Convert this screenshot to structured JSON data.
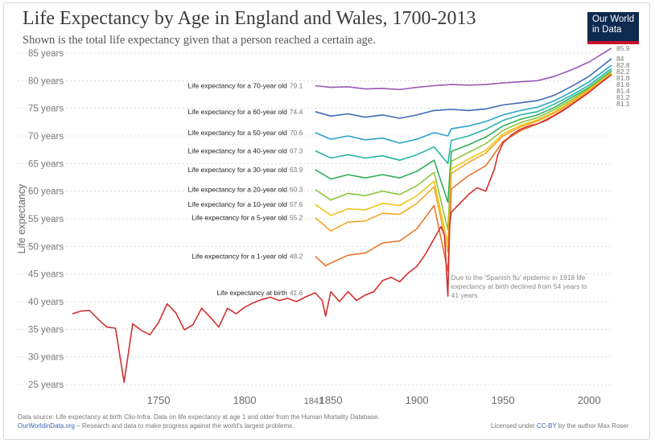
{
  "header": {
    "title": "Life Expectancy by Age in England and Wales, 1700-2013",
    "subtitle": "Shown is the total life expectancy given that a person reached a certain age."
  },
  "logo": {
    "line1": "Our World",
    "line2": "in Data",
    "bg_color": "#0f2a4f",
    "accent_color": "#c8102e"
  },
  "footer": {
    "source": "Data source: Life expectancy at birth Clio-Infra. Data on life expectancy at age 1 and older from the Human Mortality Database.",
    "link": "OurWorldinData.org",
    "tagline": " – Research and data to make progress against the world's largest problems.",
    "license_prefix": "Licensed under ",
    "license_link": "CC-BY",
    "license_suffix": " by the author Max Roser"
  },
  "chart_data": {
    "type": "line",
    "ylabel": "Life expectancy",
    "xlim": [
      1700,
      2013
    ],
    "ylim": [
      25,
      85
    ],
    "x_ticks": [
      1750,
      1800,
      1850,
      1900,
      1950,
      2000
    ],
    "x_tick_labels": [
      "1750",
      "1800",
      "1850",
      "1900",
      "1950",
      "2000"
    ],
    "start_marker_label": "1841",
    "y_ticks": [
      25,
      30,
      35,
      40,
      45,
      50,
      55,
      60,
      65,
      70,
      75,
      80,
      85
    ],
    "y_tick_labels": [
      "25 years",
      "30 years",
      "35 years",
      "40 years",
      "45 years",
      "50 years",
      "55 years",
      "60 years",
      "65 years",
      "70 years",
      "75 years",
      "80 years",
      "85 years"
    ],
    "grid": "horizontal dotted",
    "annotation": {
      "lines": [
        "Due to the 'Spanish flu' epidemic in 1918 life",
        "expectancy at birth declined from 54 years to",
        "41 years."
      ],
      "x": 1918,
      "y": 41
    },
    "series": [
      {
        "name": "Life expectancy for a 70-year old",
        "color": "#9b59b6",
        "start_value": "79.1",
        "end_value": "85.9",
        "points": [
          [
            1841,
            79.1
          ],
          [
            1850,
            78.8
          ],
          [
            1860,
            78.9
          ],
          [
            1870,
            78.5
          ],
          [
            1880,
            78.6
          ],
          [
            1890,
            78.4
          ],
          [
            1900,
            78.8
          ],
          [
            1910,
            79.1
          ],
          [
            1920,
            79.3
          ],
          [
            1930,
            79.2
          ],
          [
            1940,
            79.3
          ],
          [
            1950,
            79.6
          ],
          [
            1960,
            79.8
          ],
          [
            1970,
            80.0
          ],
          [
            1980,
            80.8
          ],
          [
            1990,
            82.0
          ],
          [
            2000,
            83.4
          ],
          [
            2013,
            85.9
          ]
        ]
      },
      {
        "name": "Life expectancy for a 60-year old",
        "color": "#3f6bb5",
        "start_value": "74.4",
        "end_value": "84",
        "points": [
          [
            1841,
            74.4
          ],
          [
            1850,
            73.6
          ],
          [
            1860,
            74.0
          ],
          [
            1870,
            73.4
          ],
          [
            1880,
            73.8
          ],
          [
            1890,
            73.2
          ],
          [
            1900,
            73.8
          ],
          [
            1910,
            74.6
          ],
          [
            1920,
            74.8
          ],
          [
            1930,
            74.6
          ],
          [
            1940,
            74.9
          ],
          [
            1950,
            75.6
          ],
          [
            1960,
            76.0
          ],
          [
            1970,
            76.4
          ],
          [
            1980,
            77.4
          ],
          [
            1990,
            79.0
          ],
          [
            2000,
            80.8
          ],
          [
            2013,
            84.0
          ]
        ]
      },
      {
        "name": "Life expectancy for a 50-year old",
        "color": "#2aa3c9",
        "start_value": "70.6",
        "end_value": "82.8",
        "points": [
          [
            1841,
            70.6
          ],
          [
            1850,
            69.4
          ],
          [
            1860,
            70.0
          ],
          [
            1870,
            69.3
          ],
          [
            1880,
            69.6
          ],
          [
            1890,
            68.7
          ],
          [
            1900,
            69.4
          ],
          [
            1910,
            70.6
          ],
          [
            1918,
            70.0
          ],
          [
            1920,
            71.3
          ],
          [
            1930,
            71.8
          ],
          [
            1940,
            72.6
          ],
          [
            1950,
            73.8
          ],
          [
            1960,
            74.6
          ],
          [
            1970,
            75.2
          ],
          [
            1980,
            76.4
          ],
          [
            1990,
            78.0
          ],
          [
            2000,
            79.8
          ],
          [
            2013,
            82.8
          ]
        ]
      },
      {
        "name": "Life expectancy for a 40-year old",
        "color": "#26b5a4",
        "start_value": "67.3",
        "end_value": "82.2",
        "points": [
          [
            1841,
            67.3
          ],
          [
            1850,
            66.0
          ],
          [
            1860,
            66.6
          ],
          [
            1870,
            66.0
          ],
          [
            1880,
            66.4
          ],
          [
            1890,
            65.6
          ],
          [
            1900,
            66.6
          ],
          [
            1910,
            68.0
          ],
          [
            1918,
            65.0
          ],
          [
            1920,
            69.2
          ],
          [
            1930,
            70.0
          ],
          [
            1940,
            71.2
          ],
          [
            1950,
            72.8
          ],
          [
            1960,
            73.8
          ],
          [
            1970,
            74.4
          ],
          [
            1980,
            75.8
          ],
          [
            1990,
            77.4
          ],
          [
            2000,
            79.2
          ],
          [
            2013,
            82.2
          ]
        ]
      },
      {
        "name": "Life expectancy for a 30-year old",
        "color": "#2fae5a",
        "start_value": "63.9",
        "end_value": "81.8",
        "points": [
          [
            1841,
            63.9
          ],
          [
            1850,
            62.2
          ],
          [
            1860,
            63.0
          ],
          [
            1870,
            62.4
          ],
          [
            1880,
            63.0
          ],
          [
            1890,
            62.4
          ],
          [
            1900,
            63.6
          ],
          [
            1910,
            65.6
          ],
          [
            1918,
            58.0
          ],
          [
            1920,
            67.2
          ],
          [
            1930,
            68.4
          ],
          [
            1940,
            69.8
          ],
          [
            1950,
            71.8
          ],
          [
            1960,
            73.0
          ],
          [
            1970,
            73.8
          ],
          [
            1980,
            75.2
          ],
          [
            1990,
            77.0
          ],
          [
            2000,
            78.8
          ],
          [
            2013,
            81.8
          ]
        ]
      },
      {
        "name": "Life expectancy for a 20-year old",
        "color": "#8cc63f",
        "start_value": "60.3",
        "end_value": "81.6",
        "points": [
          [
            1841,
            60.3
          ],
          [
            1850,
            58.4
          ],
          [
            1860,
            59.6
          ],
          [
            1870,
            59.2
          ],
          [
            1880,
            60.0
          ],
          [
            1890,
            59.4
          ],
          [
            1900,
            61.0
          ],
          [
            1910,
            63.4
          ],
          [
            1918,
            53.0
          ],
          [
            1920,
            65.4
          ],
          [
            1930,
            67.0
          ],
          [
            1940,
            68.6
          ],
          [
            1950,
            71.0
          ],
          [
            1960,
            72.4
          ],
          [
            1970,
            73.3
          ],
          [
            1980,
            74.8
          ],
          [
            1990,
            76.6
          ],
          [
            2000,
            78.6
          ],
          [
            2013,
            81.6
          ]
        ]
      },
      {
        "name": "Life expectancy for a 10-year old",
        "color": "#f0c419",
        "start_value": "57.6",
        "end_value": "81.4",
        "points": [
          [
            1841,
            57.6
          ],
          [
            1850,
            55.6
          ],
          [
            1860,
            56.8
          ],
          [
            1870,
            56.6
          ],
          [
            1880,
            57.8
          ],
          [
            1890,
            57.4
          ],
          [
            1900,
            59.2
          ],
          [
            1910,
            61.8
          ],
          [
            1918,
            50.5
          ],
          [
            1920,
            64.0
          ],
          [
            1930,
            65.8
          ],
          [
            1940,
            67.4
          ],
          [
            1950,
            70.4
          ],
          [
            1960,
            71.9
          ],
          [
            1970,
            72.9
          ],
          [
            1980,
            74.4
          ],
          [
            1990,
            76.3
          ],
          [
            2000,
            78.4
          ],
          [
            2013,
            81.4
          ]
        ]
      },
      {
        "name": "Life expectancy for a 5-year old",
        "color": "#f5a623",
        "start_value": "55.2",
        "end_value": "81.2",
        "points": [
          [
            1841,
            55.2
          ],
          [
            1850,
            52.8
          ],
          [
            1860,
            54.4
          ],
          [
            1870,
            54.6
          ],
          [
            1880,
            56.0
          ],
          [
            1890,
            55.8
          ],
          [
            1900,
            57.8
          ],
          [
            1910,
            60.8
          ],
          [
            1918,
            49.0
          ],
          [
            1920,
            63.2
          ],
          [
            1930,
            65.2
          ],
          [
            1940,
            66.9
          ],
          [
            1950,
            70.0
          ],
          [
            1960,
            71.6
          ],
          [
            1970,
            72.7
          ],
          [
            1980,
            74.2
          ],
          [
            1990,
            76.1
          ],
          [
            2000,
            78.3
          ],
          [
            2013,
            81.2
          ]
        ]
      },
      {
        "name": "Life expectancy for a 1-year old",
        "color": "#e8772e",
        "start_value": "48.2",
        "end_value": "81.1",
        "points": [
          [
            1841,
            48.2
          ],
          [
            1847,
            46.5
          ],
          [
            1850,
            47.0
          ],
          [
            1860,
            48.4
          ],
          [
            1870,
            48.8
          ],
          [
            1880,
            50.6
          ],
          [
            1890,
            51.0
          ],
          [
            1900,
            53.2
          ],
          [
            1910,
            57.4
          ],
          [
            1918,
            45.5
          ],
          [
            1920,
            60.4
          ],
          [
            1930,
            62.8
          ],
          [
            1940,
            64.6
          ],
          [
            1950,
            69.0
          ],
          [
            1960,
            70.9
          ],
          [
            1970,
            72.2
          ],
          [
            1980,
            73.8
          ],
          [
            1990,
            75.8
          ],
          [
            2000,
            78.0
          ],
          [
            2013,
            81.1
          ]
        ]
      },
      {
        "name": "Life expectancy at birth",
        "color": "#d32f2f",
        "start_value": "41.6",
        "end_value": "",
        "points": [
          [
            1700,
            37.8
          ],
          [
            1705,
            38.3
          ],
          [
            1710,
            38.4
          ],
          [
            1715,
            36.8
          ],
          [
            1720,
            35.4
          ],
          [
            1725,
            35.2
          ],
          [
            1730,
            25.4
          ],
          [
            1735,
            36.0
          ],
          [
            1740,
            34.8
          ],
          [
            1745,
            34.0
          ],
          [
            1750,
            36.2
          ],
          [
            1755,
            39.6
          ],
          [
            1760,
            38.0
          ],
          [
            1765,
            34.9
          ],
          [
            1770,
            35.8
          ],
          [
            1775,
            38.8
          ],
          [
            1780,
            37.2
          ],
          [
            1785,
            35.4
          ],
          [
            1790,
            38.8
          ],
          [
            1795,
            37.8
          ],
          [
            1800,
            39.0
          ],
          [
            1805,
            39.8
          ],
          [
            1810,
            40.4
          ],
          [
            1815,
            40.8
          ],
          [
            1820,
            40.2
          ],
          [
            1825,
            40.6
          ],
          [
            1830,
            40.0
          ],
          [
            1835,
            40.8
          ],
          [
            1841,
            41.6
          ],
          [
            1845,
            40.2
          ],
          [
            1847,
            37.4
          ],
          [
            1850,
            41.8
          ],
          [
            1855,
            40.0
          ],
          [
            1860,
            41.8
          ],
          [
            1865,
            40.2
          ],
          [
            1870,
            41.2
          ],
          [
            1875,
            41.8
          ],
          [
            1880,
            43.8
          ],
          [
            1885,
            44.4
          ],
          [
            1890,
            43.6
          ],
          [
            1895,
            45.2
          ],
          [
            1900,
            46.4
          ],
          [
            1905,
            48.6
          ],
          [
            1910,
            51.4
          ],
          [
            1914,
            53.6
          ],
          [
            1916,
            52.0
          ],
          [
            1918,
            41.0
          ],
          [
            1919,
            54.0
          ],
          [
            1920,
            56.2
          ],
          [
            1925,
            57.8
          ],
          [
            1930,
            59.4
          ],
          [
            1935,
            60.6
          ],
          [
            1940,
            60.0
          ],
          [
            1945,
            64.0
          ],
          [
            1947,
            66.6
          ],
          [
            1950,
            68.7
          ],
          [
            1955,
            70.2
          ],
          [
            1960,
            71.2
          ],
          [
            1965,
            71.8
          ],
          [
            1970,
            72.2
          ],
          [
            1975,
            72.8
          ],
          [
            1980,
            73.7
          ],
          [
            1985,
            74.6
          ],
          [
            1990,
            75.7
          ],
          [
            1995,
            76.8
          ],
          [
            2000,
            77.9
          ],
          [
            2005,
            79.2
          ],
          [
            2013,
            81.1
          ]
        ]
      }
    ]
  }
}
